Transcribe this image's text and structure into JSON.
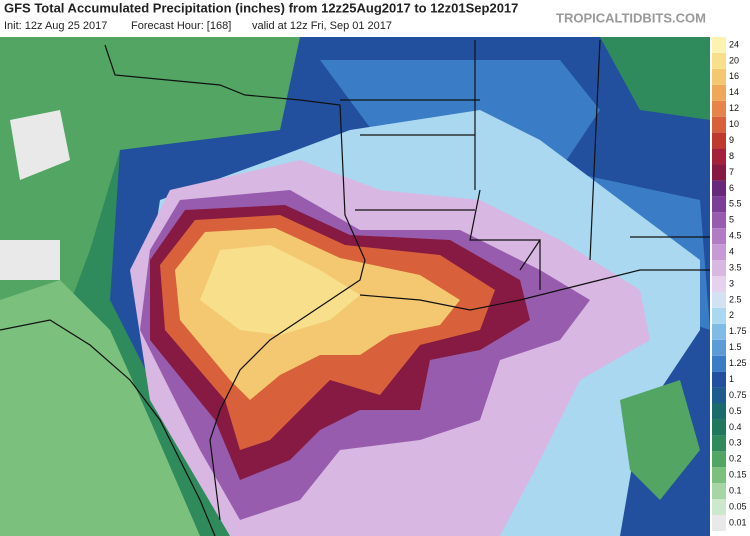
{
  "header": {
    "title": "GFS Total Accumulated Precipitation (inches) from 12z25Aug2017 to 12z01Sep2017",
    "init": "Init: 12z Aug 25 2017",
    "forecast": "Forecast Hour: [168]",
    "valid": "valid at 12z Fri, Sep 01 2017",
    "brand": "TROPICALTIDBITS.COM"
  },
  "legend": {
    "levels": [
      {
        "label": "0.01",
        "color": "#e9e9e9"
      },
      {
        "label": "0.05",
        "color": "#cde8cd"
      },
      {
        "label": "0.1",
        "color": "#a6d6a6"
      },
      {
        "label": "0.15",
        "color": "#7cc07e"
      },
      {
        "label": "0.2",
        "color": "#52a563"
      },
      {
        "label": "0.3",
        "color": "#2f8a5c"
      },
      {
        "label": "0.4",
        "color": "#1f775c"
      },
      {
        "label": "0.5",
        "color": "#1b6a6c"
      },
      {
        "label": "0.75",
        "color": "#1d5c8c"
      },
      {
        "label": "1",
        "color": "#22509e"
      },
      {
        "label": "1.25",
        "color": "#3b7cc6"
      },
      {
        "label": "1.5",
        "color": "#5c9bd6"
      },
      {
        "label": "1.75",
        "color": "#80bbe6"
      },
      {
        "label": "2",
        "color": "#a9d8f0"
      },
      {
        "label": "2.5",
        "color": "#d3e2f3"
      },
      {
        "label": "3",
        "color": "#e6d2ee"
      },
      {
        "label": "3.5",
        "color": "#d8b7e2"
      },
      {
        "label": "4",
        "color": "#c79ad5"
      },
      {
        "label": "4.5",
        "color": "#b27cc4"
      },
      {
        "label": "5",
        "color": "#985cae"
      },
      {
        "label": "5.5",
        "color": "#7d3f95"
      },
      {
        "label": "6",
        "color": "#68297a"
      },
      {
        "label": "7",
        "color": "#861a42"
      },
      {
        "label": "8",
        "color": "#a5213a"
      },
      {
        "label": "9",
        "color": "#bf3a2c"
      },
      {
        "label": "10",
        "color": "#d8603a"
      },
      {
        "label": "12",
        "color": "#e7844a"
      },
      {
        "label": "14",
        "color": "#efa85a"
      },
      {
        "label": "16",
        "color": "#f4c870"
      },
      {
        "label": "20",
        "color": "#f7df8b"
      },
      {
        "label": "24",
        "color": "#fcf3b0"
      }
    ]
  }
}
